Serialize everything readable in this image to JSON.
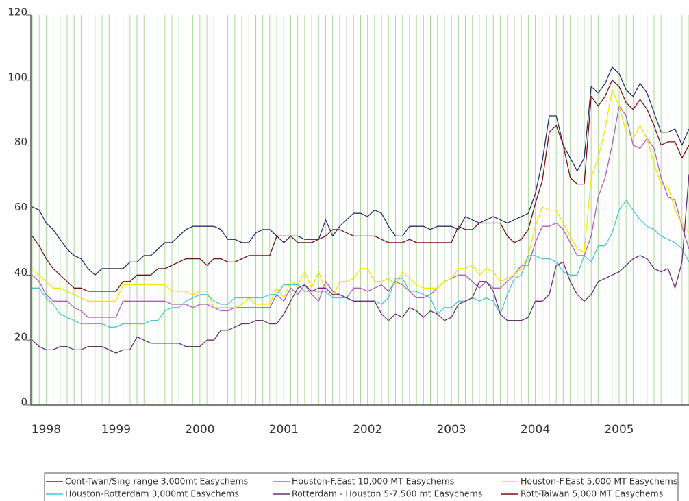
{
  "chart_data": {
    "type": "line",
    "categories": [
      null,
      null,
      "1998",
      null,
      null,
      null,
      null,
      null,
      null,
      null,
      null,
      null,
      "1999",
      null,
      null,
      null,
      null,
      null,
      null,
      null,
      null,
      null,
      null,
      null,
      "2000",
      null,
      null,
      null,
      null,
      null,
      null,
      null,
      null,
      null,
      null,
      null,
      "2001",
      null,
      null,
      null,
      null,
      null,
      null,
      null,
      null,
      null,
      null,
      null,
      "2002",
      null,
      null,
      null,
      null,
      null,
      null,
      null,
      null,
      null,
      null,
      null,
      "2003",
      null,
      null,
      null,
      null,
      null,
      null,
      null,
      null,
      null,
      null,
      null,
      "2004",
      null,
      null,
      null,
      null,
      null,
      null,
      null,
      null,
      null,
      null,
      null,
      "2005",
      null,
      null,
      null,
      null,
      null,
      null,
      null,
      null,
      null,
      null
    ],
    "ylim": [
      0,
      120
    ],
    "yticks": [
      0,
      20,
      40,
      60,
      80,
      100,
      120
    ],
    "x_grid": true,
    "grid_color": "#a9d89a",
    "series": [
      {
        "name": "Cont-Twan/Sing range 3,000mt Easychems",
        "color": "#2b2d6e",
        "values": [
          61,
          60,
          56,
          54,
          51,
          48,
          46,
          45,
          42,
          40,
          42,
          42,
          42,
          42,
          44,
          44,
          46,
          46,
          48,
          50,
          50,
          52,
          54,
          55,
          55,
          55,
          55,
          54,
          51,
          51,
          50,
          50,
          53,
          54,
          54,
          52,
          50,
          52,
          52,
          51,
          51,
          51,
          57,
          52,
          55,
          57,
          59,
          59,
          58,
          60,
          59,
          55,
          52,
          52,
          55,
          55,
          55,
          54,
          55,
          55,
          55,
          54,
          58,
          57,
          56,
          57,
          58,
          57,
          56,
          57,
          58,
          59,
          65,
          75,
          89,
          89,
          80,
          76,
          72,
          76,
          98,
          96,
          99,
          104,
          102,
          97,
          95,
          99,
          96,
          90,
          84,
          84,
          85,
          80,
          85
        ]
      },
      {
        "name": "Houston-F.East 10,000 MT Easychems",
        "color": "#b05cb8",
        "values": [
          40,
          38,
          34,
          32,
          32,
          32,
          30,
          29,
          27,
          27,
          27,
          27,
          27,
          32,
          32,
          32,
          32,
          32,
          32,
          32,
          31,
          31,
          31,
          30,
          31,
          31,
          30,
          29,
          29,
          30,
          30,
          30,
          30,
          30,
          30,
          34,
          32,
          36,
          34,
          37,
          34,
          32,
          38,
          35,
          34,
          33,
          36,
          36,
          35,
          36,
          37,
          35,
          38,
          37,
          35,
          33,
          33,
          34,
          36,
          38,
          39,
          40,
          40,
          38,
          36,
          38,
          36,
          36,
          38,
          40,
          43,
          43,
          50,
          55,
          55,
          56,
          54,
          50,
          46,
          46,
          52,
          64,
          70,
          80,
          92,
          89,
          80,
          79,
          82,
          79,
          70,
          64,
          63,
          55,
          48
        ]
      },
      {
        "name": "Houston-F.East 5,000 MT Easychems",
        "color": "#f2e600",
        "values": [
          42,
          40,
          38,
          36,
          36,
          35,
          34,
          33,
          32,
          32,
          32,
          32,
          32,
          37,
          37,
          37,
          37,
          37,
          37,
          37,
          35,
          35,
          35,
          34,
          35,
          35,
          30,
          30,
          30,
          30,
          31,
          33,
          31,
          31,
          31,
          36,
          33,
          38,
          37,
          41,
          36,
          41,
          35,
          33,
          38,
          38,
          39,
          42,
          42,
          38,
          38,
          39,
          37,
          41,
          39,
          37,
          36,
          36,
          36,
          38,
          39,
          42,
          42,
          43,
          40,
          42,
          41,
          38,
          39,
          40,
          42,
          46,
          55,
          61,
          60,
          60,
          56,
          52,
          48,
          47,
          70,
          76,
          85,
          97,
          92,
          84,
          82,
          86,
          82,
          74,
          68,
          67,
          60,
          56,
          53
        ]
      },
      {
        "name": "Houston-Rotterdam 3,000mt Easychems",
        "color": "#4cc4d0",
        "values": [
          36,
          36,
          33,
          31,
          28,
          27,
          26,
          25,
          25,
          25,
          25,
          24,
          24,
          25,
          25,
          25,
          25,
          26,
          26,
          29,
          30,
          30,
          32,
          33,
          34,
          34,
          32,
          31,
          31,
          33,
          33,
          33,
          33,
          33,
          34,
          34,
          37,
          37,
          37,
          35,
          35,
          35,
          35,
          33,
          33,
          33,
          32,
          32,
          32,
          32,
          31,
          33,
          39,
          39,
          35,
          35,
          34,
          33,
          28,
          30,
          30,
          32,
          32,
          33,
          32,
          33,
          32,
          28,
          34,
          39,
          40,
          46,
          46,
          45,
          45,
          44,
          41,
          40,
          40,
          46,
          44,
          49,
          49,
          53,
          60,
          63,
          60,
          57,
          55,
          54,
          52,
          51,
          50,
          48,
          44
        ]
      },
      {
        "name": "Rotterdam - Houston 5-7,500 mt Easychems",
        "color": "#6b2d7c",
        "values": [
          20,
          18,
          17,
          17,
          18,
          18,
          17,
          17,
          18,
          18,
          18,
          17,
          16,
          17,
          17,
          21,
          20,
          19,
          19,
          19,
          19,
          19,
          18,
          18,
          18,
          20,
          20,
          23,
          23,
          24,
          25,
          25,
          26,
          26,
          25,
          25,
          28,
          32,
          36,
          37,
          35,
          36,
          36,
          34,
          34,
          33,
          32,
          32,
          32,
          32,
          28,
          26,
          28,
          27,
          30,
          29,
          27,
          29,
          28,
          26,
          27,
          31,
          32,
          33,
          38,
          38,
          35,
          28,
          26,
          26,
          26,
          27,
          32,
          32,
          34,
          43,
          44,
          38,
          34,
          32,
          34,
          38,
          39,
          40,
          41,
          43,
          45,
          46,
          45,
          42,
          41,
          42,
          36,
          44,
          71
        ]
      },
      {
        "name": "Rott-Taiwan 5,000 MT Easychems",
        "color": "#7a0f14",
        "values": [
          52,
          49,
          45,
          42,
          40,
          38,
          36,
          36,
          35,
          35,
          35,
          35,
          35,
          38,
          38,
          40,
          40,
          40,
          42,
          42,
          43,
          44,
          45,
          45,
          45,
          43,
          45,
          45,
          44,
          44,
          45,
          46,
          46,
          46,
          46,
          52,
          52,
          52,
          50,
          50,
          50,
          51,
          52,
          54,
          54,
          53,
          52,
          52,
          52,
          52,
          51,
          50,
          50,
          50,
          51,
          50,
          50,
          50,
          50,
          50,
          50,
          55,
          54,
          54,
          56,
          56,
          56,
          56,
          52,
          50,
          51,
          54,
          62,
          69,
          84,
          86,
          80,
          70,
          68,
          68,
          95,
          92,
          95,
          100,
          98,
          93,
          91,
          94,
          91,
          86,
          80,
          81,
          81,
          76,
          80
        ]
      }
    ]
  }
}
